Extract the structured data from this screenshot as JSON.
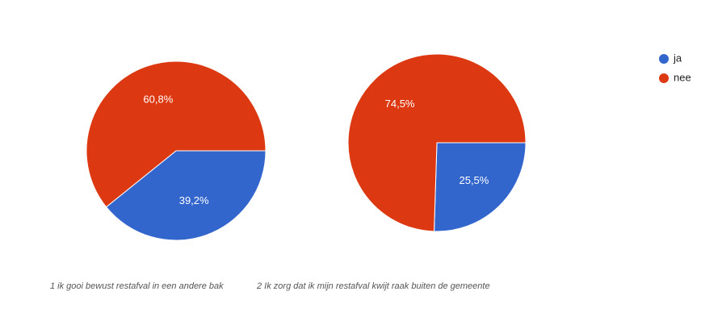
{
  "chart_data": [
    {
      "type": "pie",
      "title": "1 ik gooi bewust restafval in een andere bak",
      "categories": [
        "ja",
        "nee"
      ],
      "values": [
        39.2,
        60.8
      ],
      "value_labels": [
        "39,2%",
        "60,8%"
      ],
      "colors": [
        "#3366cc",
        "#dc3912"
      ]
    },
    {
      "type": "pie",
      "title": "2 Ik zorg dat ik mijn restafval kwijt raak buiten de gemeente",
      "categories": [
        "ja",
        "nee"
      ],
      "values": [
        25.5,
        74.5
      ],
      "value_labels": [
        "25,5%",
        "74,5%"
      ],
      "colors": [
        "#3366cc",
        "#dc3912"
      ]
    }
  ]
}
